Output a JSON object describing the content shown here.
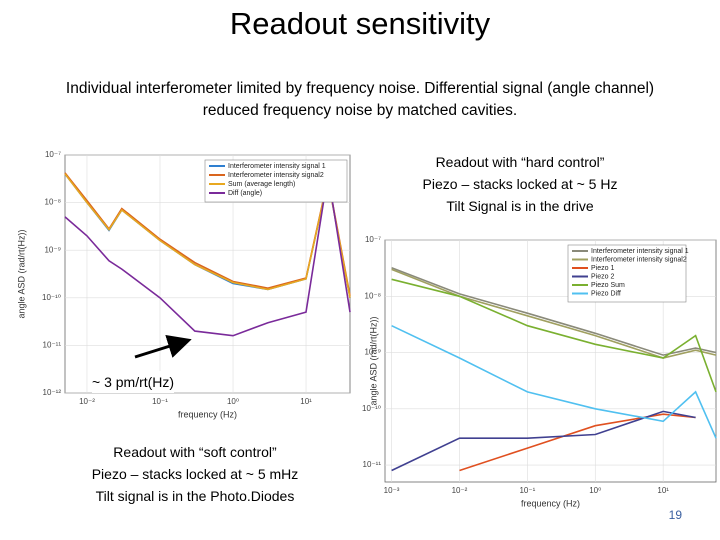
{
  "title": "Readout sensitivity",
  "subtitle": "Individual interferometer limited by frequency noise. Differential signal (angle channel) reduced frequency noise by matched cavities.",
  "hard_control": [
    "Readout with “hard control”",
    "Piezo – stacks locked at ~ 5 Hz",
    "Tilt Signal is in the drive"
  ],
  "soft_control": [
    "Readout with “soft control”",
    "Piezo – stacks locked at ~ 5 mHz",
    "Tilt signal is in the Photo.Diodes"
  ],
  "callout": "~ 3 pm/rt(Hz)",
  "page_number": "19",
  "chart_data": [
    {
      "type": "line",
      "xlabel": "frequency (Hz)",
      "ylabel": "angle ASD (rad/rt(Hz))",
      "log_x": true,
      "log_y": true,
      "grid": true,
      "legend": "upper right",
      "xlim": [
        0.005,
        40
      ],
      "ylim": [
        1e-12,
        1e-07
      ],
      "xticks": [
        {
          "value": 0.01,
          "label": "10⁻²"
        },
        {
          "value": 0.1,
          "label": "10⁻¹"
        },
        {
          "value": 1,
          "label": "10⁰"
        },
        {
          "value": 10,
          "label": "10¹"
        }
      ],
      "yticks": [
        {
          "value": 1e-12,
          "label": "10⁻¹²"
        },
        {
          "value": 1e-11,
          "label": "10⁻¹¹"
        },
        {
          "value": 1e-10,
          "label": "10⁻¹⁰"
        },
        {
          "value": 1e-09,
          "label": "10⁻⁹"
        },
        {
          "value": 1e-08,
          "label": "10⁻⁸"
        },
        {
          "value": 1e-07,
          "label": "10⁻⁷"
        }
      ],
      "x": [
        0.005,
        0.01,
        0.02,
        0.03,
        0.1,
        0.3,
        1,
        3,
        10,
        20,
        40
      ],
      "series": [
        {
          "name": "Interferometer intensity signal 1",
          "color": "#2f7fd0",
          "values": [
            4e-08,
            1e-08,
            2.6e-09,
            7e-09,
            1.6e-09,
            5e-10,
            2e-10,
            1.5e-10,
            2.5e-10,
            3e-08,
            1e-10
          ]
        },
        {
          "name": "Interferometer intensity signal2",
          "color": "#d9651e",
          "values": [
            4.2e-08,
            1.1e-08,
            2.8e-09,
            7.5e-09,
            1.7e-09,
            5.5e-10,
            2.2e-10,
            1.6e-10,
            2.6e-10,
            3.2e-08,
            1.1e-10
          ]
        },
        {
          "name": "Sum (average length)",
          "color": "#e8a820",
          "values": [
            4e-08,
            1e-08,
            2.7e-09,
            7e-09,
            1.6e-09,
            5e-10,
            2.1e-10,
            1.5e-10,
            2.5e-10,
            3e-08,
            1e-10
          ]
        },
        {
          "name": "Diff (angle)",
          "color": "#7a2a9a",
          "values": [
            5e-09,
            2e-09,
            6e-10,
            4e-10,
            1e-10,
            2e-11,
            1.6e-11,
            3e-11,
            5e-11,
            4e-08,
            5e-11
          ]
        }
      ]
    },
    {
      "type": "line",
      "xlabel": "frequency (Hz)",
      "ylabel": "angle ASD (rad/rt(Hz))",
      "log_x": true,
      "log_y": true,
      "grid": true,
      "legend": "upper right",
      "xlim": [
        0.0008,
        60
      ],
      "ylim": [
        5e-12,
        1e-07
      ],
      "xticks": [
        {
          "value": 0.001,
          "label": "10⁻³"
        },
        {
          "value": 0.01,
          "label": "10⁻²"
        },
        {
          "value": 0.1,
          "label": "10⁻¹"
        },
        {
          "value": 1,
          "label": "10⁰"
        },
        {
          "value": 10,
          "label": "10¹"
        }
      ],
      "yticks": [
        {
          "value": 1e-11,
          "label": "10⁻¹¹"
        },
        {
          "value": 1e-10,
          "label": "10⁻¹⁰"
        },
        {
          "value": 1e-09,
          "label": "10⁻⁹"
        },
        {
          "value": 1e-08,
          "label": "10⁻⁸"
        },
        {
          "value": 1e-07,
          "label": "10⁻⁷"
        }
      ],
      "x": [
        0.001,
        0.01,
        0.1,
        1,
        10,
        30,
        60
      ],
      "series": [
        {
          "name": "Interferometer intensity signal 1",
          "color": "#8a8a7a",
          "values": [
            3.2e-08,
            1.1e-08,
            5e-09,
            2.2e-09,
            9e-10,
            1.2e-09,
            1e-09
          ]
        },
        {
          "name": "Interferometer intensity signal2",
          "color": "#a0a060",
          "values": [
            3e-08,
            1e-08,
            4.5e-09,
            2e-09,
            8e-10,
            1.1e-09,
            9e-10
          ]
        },
        {
          "name": "Piezo 1",
          "color": "#e05020",
          "values": [
            null,
            8e-12,
            2e-11,
            5e-11,
            8e-11,
            7e-11,
            null
          ]
        },
        {
          "name": "Piezo 2",
          "color": "#404090",
          "values": [
            8e-12,
            3e-11,
            3e-11,
            3.5e-11,
            9e-11,
            7e-11,
            null
          ]
        },
        {
          "name": "Piezo Sum",
          "color": "#7ab030",
          "values": [
            2e-08,
            1e-08,
            3e-09,
            1.4e-09,
            8e-10,
            2e-09,
            2e-10
          ]
        },
        {
          "name": "Piezo Diff",
          "color": "#50c0f0",
          "values": [
            3e-09,
            8e-10,
            2e-10,
            1e-10,
            6e-11,
            2e-10,
            3e-11
          ]
        }
      ]
    }
  ]
}
